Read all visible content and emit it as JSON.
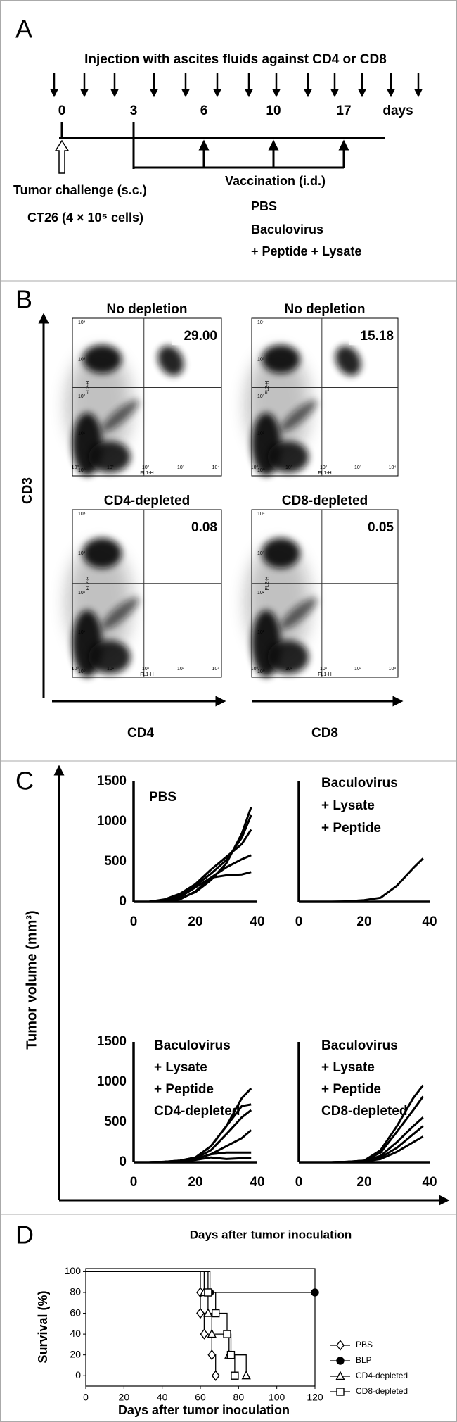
{
  "panel_labels": [
    "A",
    "B",
    "C",
    "D"
  ],
  "panel_a": {
    "title": "Injection with ascites fluids against CD4 or CD8",
    "day_labels": [
      "0",
      "3",
      "6",
      "10",
      "17"
    ],
    "days_unit": "days",
    "challenge": "Tumor challenge (s.c.)",
    "cells": "CT26 (4 × 10⁵ cells)",
    "vaccination": "Vaccination (i.d.)",
    "groups": [
      "PBS",
      "Baculovirus",
      "+ Peptide + Lysate"
    ]
  },
  "panel_b": {
    "y_label": "CD3",
    "x_labels": [
      "CD4",
      "CD8"
    ],
    "fl1": "FL1-H",
    "fl2": "FL2-H",
    "tick_labels": [
      "10⁰",
      "10¹",
      "10²",
      "10³",
      "10⁴"
    ],
    "plots": [
      {
        "title": "No depletion",
        "percent": "29.00"
      },
      {
        "title": "No depletion",
        "percent": "15.18"
      },
      {
        "title": "CD4-depleted",
        "percent": "0.08"
      },
      {
        "title": "CD8-depleted",
        "percent": "0.05"
      }
    ]
  },
  "panel_c": {
    "y_label": "Tumor volume (mm³)"
  },
  "chart_data": [
    {
      "type": "line",
      "title_lines": [
        "PBS"
      ],
      "x": [
        0,
        5,
        10,
        15,
        20,
        25,
        30,
        35,
        38
      ],
      "series": [
        {
          "color": "#000000",
          "values": [
            0,
            0,
            10,
            40,
            120,
            270,
            480,
            850,
            1180
          ]
        },
        {
          "color": "#000000",
          "values": [
            0,
            0,
            20,
            80,
            200,
            350,
            520,
            800,
            1080
          ]
        },
        {
          "color": "#000000",
          "values": [
            0,
            0,
            30,
            100,
            220,
            400,
            560,
            720,
            900
          ]
        },
        {
          "color": "#000000",
          "values": [
            0,
            0,
            5,
            30,
            130,
            300,
            430,
            530,
            580
          ]
        },
        {
          "color": "#000000",
          "values": [
            0,
            0,
            10,
            60,
            180,
            300,
            330,
            340,
            370
          ]
        }
      ],
      "xlim": [
        0,
        40
      ],
      "ylim": [
        0,
        1500
      ],
      "xticks": [
        0,
        20,
        40
      ],
      "yticks": [
        0,
        500,
        1000,
        1500
      ]
    },
    {
      "type": "line",
      "title_lines": [
        "Baculovirus",
        "+ Lysate",
        "+ Peptide"
      ],
      "x": [
        0,
        5,
        10,
        15,
        20,
        25,
        30,
        35,
        38
      ],
      "series": [
        {
          "color": "#000000",
          "values": [
            0,
            0,
            0,
            5,
            20,
            50,
            200,
            420,
            540
          ]
        }
      ],
      "xlim": [
        0,
        40
      ],
      "ylim": [
        0,
        1500
      ],
      "xticks": [
        0,
        20,
        40
      ]
    },
    {
      "type": "line",
      "title_lines": [
        "Baculovirus",
        "+ Lysate",
        "+ Peptide",
        "CD4-depleted"
      ],
      "x": [
        0,
        5,
        10,
        15,
        20,
        25,
        30,
        35,
        38
      ],
      "series": [
        {
          "color": "#000000",
          "values": [
            0,
            0,
            5,
            20,
            60,
            200,
            450,
            800,
            920
          ]
        },
        {
          "color": "#000000",
          "values": [
            0,
            0,
            5,
            20,
            60,
            200,
            450,
            700,
            720
          ]
        },
        {
          "color": "#000000",
          "values": [
            0,
            0,
            5,
            15,
            50,
            150,
            350,
            560,
            650
          ]
        },
        {
          "color": "#000000",
          "values": [
            0,
            0,
            5,
            15,
            40,
            100,
            200,
            300,
            400
          ]
        },
        {
          "color": "#000000",
          "values": [
            0,
            0,
            5,
            10,
            40,
            100,
            120,
            120,
            120
          ]
        },
        {
          "color": "#000000",
          "values": [
            0,
            0,
            5,
            10,
            30,
            60,
            40,
            50,
            50
          ]
        }
      ],
      "xlim": [
        0,
        40
      ],
      "ylim": [
        0,
        1500
      ],
      "xticks": [
        0,
        20,
        40
      ],
      "yticks": [
        0,
        500,
        1000,
        1500
      ]
    },
    {
      "type": "line",
      "title_lines": [
        "Baculovirus",
        "+ Lysate",
        "+ Peptide",
        "CD8-depleted"
      ],
      "x": [
        0,
        5,
        10,
        15,
        20,
        25,
        30,
        35,
        38
      ],
      "series": [
        {
          "color": "#000000",
          "values": [
            0,
            0,
            0,
            5,
            20,
            150,
            450,
            800,
            960
          ]
        },
        {
          "color": "#000000",
          "values": [
            0,
            0,
            0,
            5,
            20,
            120,
            380,
            650,
            820
          ]
        },
        {
          "color": "#000000",
          "values": [
            0,
            0,
            0,
            5,
            15,
            80,
            250,
            450,
            560
          ]
        },
        {
          "color": "#000000",
          "values": [
            0,
            0,
            0,
            5,
            15,
            60,
            180,
            350,
            450
          ]
        },
        {
          "color": "#000000",
          "values": [
            0,
            0,
            0,
            5,
            10,
            40,
            130,
            250,
            320
          ]
        }
      ],
      "xlim": [
        0,
        40
      ],
      "ylim": [
        0,
        1500
      ],
      "xticks": [
        0,
        20,
        40
      ]
    },
    {
      "type": "step",
      "title": "Days after tumor inoculation",
      "x_label": "Days after tumor inoculation",
      "y_label": "Survival (%)",
      "series": [
        {
          "name": "PBS",
          "marker": "diamond",
          "color": "#000000",
          "x": [
            0,
            60,
            60,
            62,
            66,
            68
          ],
          "values": [
            100,
            80,
            60,
            40,
            20,
            0
          ]
        },
        {
          "name": "BLP",
          "marker": "circle",
          "color": "#000000",
          "x": [
            0,
            65,
            120
          ],
          "values": [
            100,
            80,
            80
          ]
        },
        {
          "name": "CD4-depleted",
          "marker": "triangle",
          "color": "#000000",
          "x": [
            0,
            62,
            64,
            66,
            75,
            84
          ],
          "values": [
            100,
            80,
            60,
            40,
            20,
            0
          ]
        },
        {
          "name": "CD8-depleted",
          "marker": "square",
          "color": "#000000",
          "x": [
            0,
            64,
            68,
            74,
            76,
            78
          ],
          "values": [
            100,
            80,
            60,
            40,
            20,
            0
          ]
        }
      ],
      "xlim": [
        0,
        120
      ],
      "ylim": [
        -10,
        103
      ],
      "xticks": [
        0,
        20,
        40,
        60,
        80,
        100,
        120
      ],
      "yticks": [
        0,
        20,
        40,
        60,
        80,
        100
      ],
      "legend": "lower-right"
    }
  ]
}
